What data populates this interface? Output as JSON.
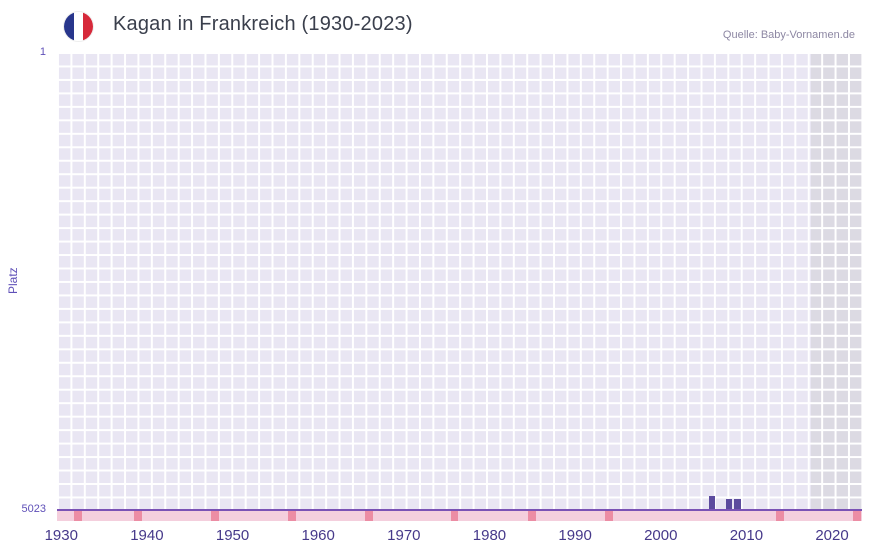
{
  "header": {
    "title": "Kagan in Frankreich (1930-2023)",
    "source": "Quelle: Baby-Vornamen.de"
  },
  "chart_data": {
    "type": "bar",
    "title": "Kagan in Frankreich (1930-2023)",
    "source": "Quelle: Baby-Vornamen.de",
    "ylabel": "Platz",
    "xlabel": "",
    "yticks": [
      "1",
      "5023"
    ],
    "ylim": [
      1,
      5023
    ],
    "y_axis_inverted": true,
    "xlim": [
      1930,
      2024
    ],
    "xticks": [
      1930,
      1940,
      1950,
      1960,
      1970,
      1980,
      1990,
      2000,
      2010,
      2020
    ],
    "grid": true,
    "legend": false,
    "bars": [
      {
        "year": 2006,
        "rank": 4870
      },
      {
        "year": 2008,
        "rank": 4900
      },
      {
        "year": 2009,
        "rank": 4900
      }
    ],
    "bottom_marker_years": [
      1932,
      1939,
      1948,
      1957,
      1966,
      1976,
      1985,
      1994,
      2014,
      2023
    ],
    "highlight_band": {
      "from": 2018,
      "to": 2024
    },
    "colors": {
      "bar": "#5c4b9e",
      "plot_background": "#e9e6f3",
      "highlight_band_background": "#dcdae3",
      "grid_line": "#ffffff",
      "axis_line": "#7a52b5",
      "strip_background": "#f4cfdd",
      "strip_marker": "#ec8da4",
      "x_tick_text": "#46398a",
      "y_tick_text": "#5f50b8",
      "flag_blue": "#28368c",
      "flag_red": "#d6293a"
    }
  }
}
